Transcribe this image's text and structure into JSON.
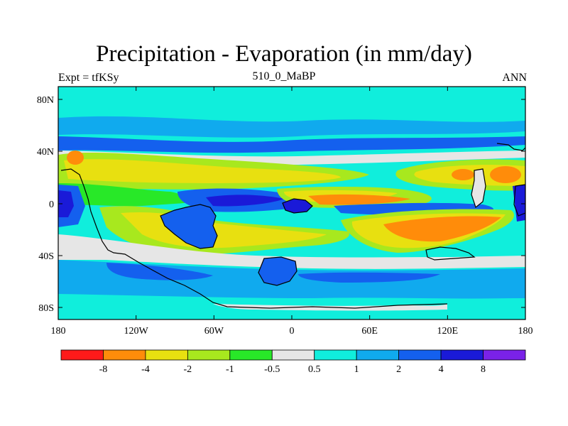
{
  "title": "Precipitation - Evaporation (in mm/day)",
  "left_label": "Expt = tfKSy",
  "center_label": "510_0_MaBP",
  "right_label": "ANN",
  "lat_labels": [
    "80N",
    "40N",
    "0",
    "40S",
    "80S"
  ],
  "lon_labels": [
    "180",
    "120W",
    "60W",
    "0",
    "60E",
    "120E",
    "180"
  ],
  "colorbar": {
    "colors": [
      "#ff1a1a",
      "#ff8c0a",
      "#e8e010",
      "#a8e81e",
      "#28e828",
      "#e6e6e6",
      "#10eedc",
      "#10aaee",
      "#1460ee",
      "#1a1ad8",
      "#7a22e8"
    ],
    "labels": [
      "-8",
      "-4",
      "-2",
      "-1",
      "-0.5",
      "0.5",
      "1",
      "2",
      "4",
      "8"
    ]
  }
}
